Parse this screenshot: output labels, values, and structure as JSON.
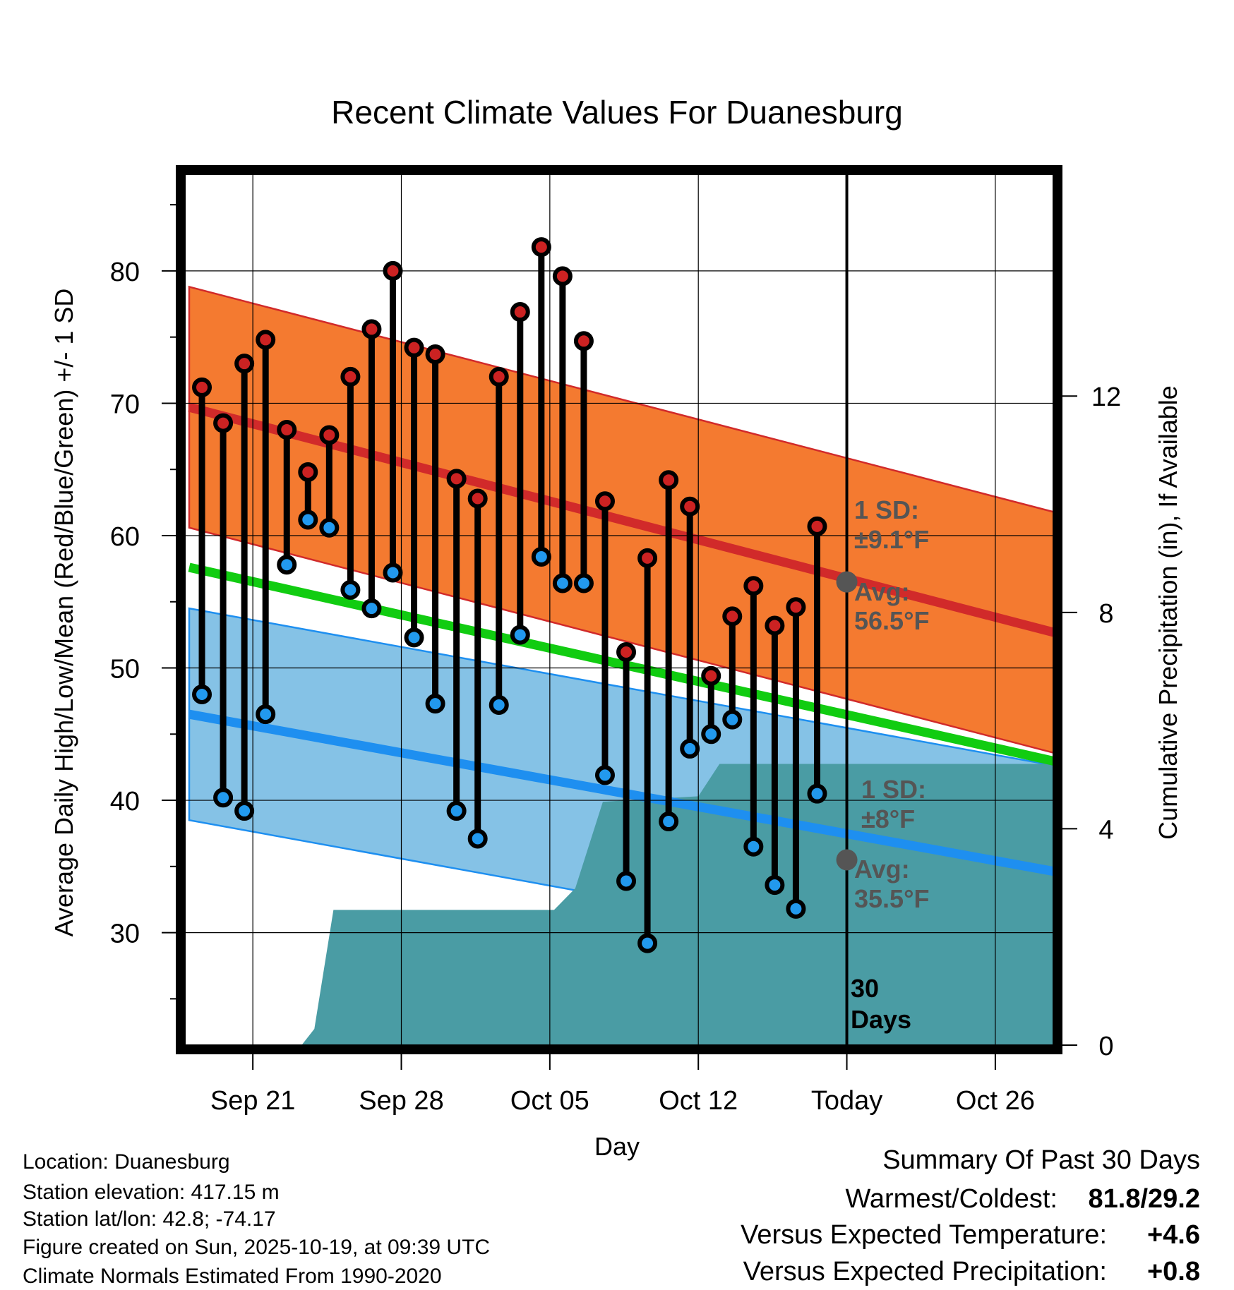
{
  "chart_data": {
    "type": "line",
    "title": "Recent Climate Values For Duanesburg",
    "xlabel": "Day",
    "ylabel_left": "Average Daily High/Low/Mean (Red/Blue/Green) +/- 1 SD",
    "ylabel_right": "Cumulative Precipitation (in), If Available",
    "x_tick_labels": [
      "Sep 21",
      "Sep 28",
      "Oct 05",
      "Oct 12",
      "Today",
      "Oct 26"
    ],
    "x_tick_days": [
      3,
      10,
      17,
      24,
      31,
      38
    ],
    "xlim": [
      0,
      41.2
    ],
    "y_left_lim": [
      21.5,
      87.3
    ],
    "y_left_ticks": [
      30,
      40,
      50,
      60,
      70,
      80
    ],
    "y_right_lim": [
      0,
      16.1
    ],
    "y_right_ticks": [
      0,
      4,
      8,
      12
    ],
    "today_day": 31,
    "today_marker_label": "30 Days",
    "days": [
      0.6,
      1.6,
      2.6,
      3.6,
      4.6,
      5.6,
      6.6,
      7.6,
      8.6,
      9.6,
      10.6,
      11.6,
      12.6,
      13.6,
      14.6,
      15.6,
      16.6,
      17.6,
      18.6,
      19.6,
      20.6,
      21.6,
      22.6,
      23.6,
      24.6,
      25.6,
      26.6,
      27.6,
      28.6,
      29.6
    ],
    "daily_high": [
      71.2,
      68.5,
      73.0,
      74.8,
      68.0,
      64.8,
      67.6,
      72.0,
      75.6,
      80.0,
      74.2,
      73.7,
      64.3,
      62.8,
      72.0,
      76.9,
      81.8,
      79.6,
      74.7,
      62.6,
      51.2,
      58.3,
      64.2,
      62.2,
      49.4,
      53.9,
      56.2,
      53.2,
      54.6,
      60.7
    ],
    "daily_low": [
      48.0,
      40.2,
      39.2,
      46.5,
      57.8,
      61.2,
      60.6,
      55.9,
      54.5,
      57.2,
      52.3,
      47.3,
      39.2,
      37.1,
      47.2,
      52.5,
      58.4,
      56.4,
      56.4,
      41.9,
      33.9,
      29.2,
      38.4,
      43.9,
      45.0,
      46.1,
      36.5,
      33.6,
      31.8,
      40.5
    ],
    "normal_high_range": [
      69.7,
      52.5
    ],
    "normal_low_range": [
      46.5,
      34.5
    ],
    "normal_mean_range": [
      57.6,
      42.8
    ],
    "high_sd": 9.1,
    "low_sd": 8.0,
    "precip_steps": [
      {
        "day": 0,
        "value": 0
      },
      {
        "day": 5.3,
        "value": 0
      },
      {
        "day": 5.9,
        "value": 0.3
      },
      {
        "day": 6.8,
        "value": 2.5
      },
      {
        "day": 17.2,
        "value": 2.5
      },
      {
        "day": 18.2,
        "value": 2.9
      },
      {
        "day": 19.5,
        "value": 4.5
      },
      {
        "day": 24.0,
        "value": 4.6
      },
      {
        "day": 25.0,
        "value": 5.2
      },
      {
        "day": 41.2,
        "value": 5.2
      }
    ],
    "annotations": {
      "high_sd_label": "1 SD:",
      "high_sd_value": "±9.1°F",
      "high_avg_label": "Avg:",
      "high_avg_value": "56.5°F",
      "low_sd_label": "1 SD:",
      "low_sd_value": "±8°F",
      "low_avg_label": "Avg:",
      "low_avg_value": "35.5°F",
      "today_high_avg": 56.5,
      "today_low_avg": 35.5
    },
    "colors": {
      "high_band": "#f47a30",
      "high_line": "#d12a2a",
      "low_band": "#85c2e6",
      "low_line": "#1e8ff0",
      "mean_line": "#11cc11",
      "precip": "#4a9ca4",
      "high_dot": "#cc2222",
      "low_dot": "#2299ee",
      "avg_dot": "#555555"
    }
  },
  "footer": {
    "location": "Location: Duanesburg",
    "elevation": "Station elevation: 417.15 m",
    "latlon": "Station lat/lon: 42.8; -74.17",
    "created": "Figure created on Sun, 2025-10-19, at 09:39 UTC",
    "normals": "Climate Normals Estimated From 1990-2020"
  },
  "summary": {
    "heading": "Summary Of Past 30 Days",
    "warm_cold_label": "Warmest/Coldest:",
    "warm_cold_value": "81.8/29.2",
    "temp_label": "Versus Expected Temperature:",
    "temp_value": "+4.6",
    "temp_color": "#dd2222",
    "precip_label": "Versus Expected Precipitation:",
    "precip_value": "+0.8",
    "precip_color": "#22bb22"
  }
}
